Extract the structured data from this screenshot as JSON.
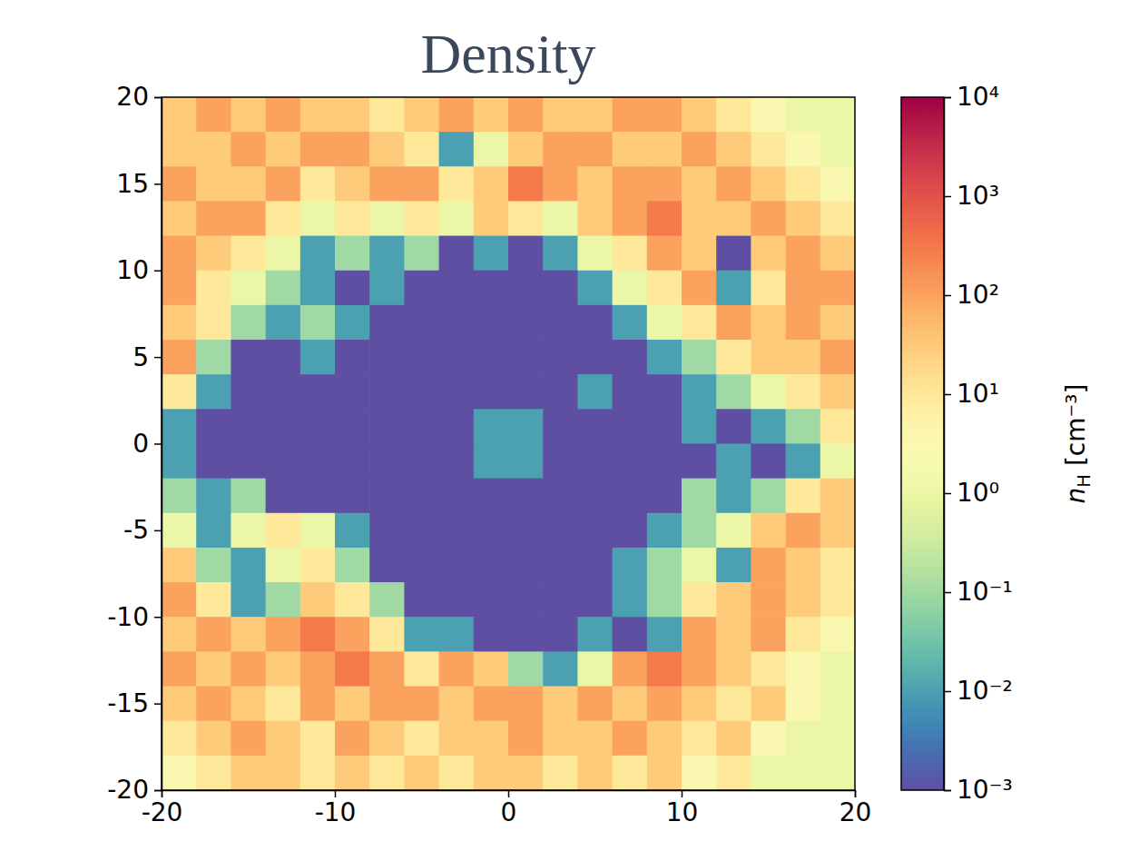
{
  "chart_data": {
    "type": "heatmap",
    "title": "Density",
    "xlim": [
      -20,
      20
    ],
    "ylim": [
      -20,
      20
    ],
    "xticks": [
      -20,
      -10,
      0,
      10,
      20
    ],
    "yticks": [
      -20,
      -15,
      -10,
      -5,
      0,
      5,
      10,
      15,
      20
    ],
    "x": [
      -19,
      -17,
      -15,
      -13,
      -11,
      -9,
      -7,
      -5,
      -3,
      -1,
      1,
      3,
      5,
      7,
      9,
      11,
      13,
      15,
      17,
      19
    ],
    "y": [
      19,
      17,
      15,
      13,
      11,
      9,
      7,
      5,
      3,
      1,
      -1,
      -3,
      -5,
      -7,
      -9,
      -11,
      -13,
      -15,
      -17,
      -19
    ],
    "cells": [
      [
        30,
        100,
        30,
        100,
        30,
        30,
        10,
        30,
        100,
        30,
        100,
        30,
        30,
        100,
        100,
        30,
        10,
        3,
        1,
        1
      ],
      [
        30,
        30,
        100,
        30,
        100,
        100,
        30,
        10,
        0.01,
        1,
        30,
        100,
        100,
        30,
        30,
        100,
        30,
        10,
        3,
        1
      ],
      [
        100,
        30,
        30,
        100,
        10,
        30,
        100,
        100,
        10,
        30,
        300,
        100,
        30,
        100,
        100,
        30,
        100,
        30,
        10,
        3
      ],
      [
        30,
        100,
        100,
        10,
        1,
        10,
        1,
        10,
        1,
        30,
        10,
        1,
        30,
        100,
        300,
        30,
        30,
        100,
        30,
        10
      ],
      [
        100,
        30,
        10,
        1,
        0.01,
        0.1,
        0.01,
        0.1,
        0.001,
        0.01,
        0.001,
        0.01,
        1,
        10,
        100,
        30,
        0.001,
        30,
        100,
        30
      ],
      [
        100,
        10,
        1,
        0.1,
        0.01,
        0.001,
        0.01,
        0.001,
        0.001,
        0.001,
        0.001,
        0.001,
        0.01,
        1,
        10,
        100,
        0.01,
        10,
        100,
        100
      ],
      [
        30,
        10,
        0.1,
        0.01,
        0.1,
        0.01,
        0.001,
        0.001,
        0.001,
        0.001,
        0.001,
        0.001,
        0.001,
        0.01,
        1,
        10,
        100,
        30,
        100,
        30
      ],
      [
        100,
        0.1,
        0.001,
        0.001,
        0.01,
        0.001,
        0.001,
        0.001,
        0.001,
        0.001,
        0.001,
        0.001,
        0.001,
        0.001,
        0.01,
        0.1,
        10,
        30,
        30,
        100
      ],
      [
        10,
        0.01,
        0.001,
        0.001,
        0.001,
        0.001,
        0.001,
        0.001,
        0.001,
        0.001,
        0.001,
        0.001,
        0.01,
        0.001,
        0.001,
        0.01,
        0.1,
        1,
        10,
        30
      ],
      [
        0.01,
        0.001,
        0.001,
        0.001,
        0.001,
        0.001,
        0.001,
        0.001,
        0.001,
        0.01,
        0.01,
        0.001,
        0.001,
        0.001,
        0.001,
        0.01,
        0.001,
        0.01,
        0.1,
        10
      ],
      [
        0.01,
        0.001,
        0.001,
        0.001,
        0.001,
        0.001,
        0.001,
        0.001,
        0.001,
        0.01,
        0.01,
        0.001,
        0.001,
        0.001,
        0.001,
        0.001,
        0.01,
        0.001,
        0.01,
        1
      ],
      [
        0.1,
        0.01,
        0.1,
        0.001,
        0.001,
        0.001,
        0.001,
        0.001,
        0.001,
        0.001,
        0.001,
        0.001,
        0.001,
        0.001,
        0.001,
        0.1,
        0.01,
        0.1,
        10,
        30
      ],
      [
        1,
        0.01,
        1,
        10,
        1,
        0.01,
        0.001,
        0.001,
        0.001,
        0.001,
        0.001,
        0.001,
        0.001,
        0.001,
        0.01,
        0.1,
        1,
        30,
        100,
        30
      ],
      [
        30,
        0.1,
        0.01,
        1,
        10,
        0.1,
        0.001,
        0.001,
        0.001,
        0.001,
        0.001,
        0.001,
        0.001,
        0.01,
        0.1,
        1,
        0.01,
        100,
        30,
        10
      ],
      [
        100,
        10,
        0.01,
        0.1,
        30,
        10,
        0.1,
        0.001,
        0.001,
        0.001,
        0.001,
        0.001,
        0.001,
        0.01,
        0.1,
        10,
        30,
        100,
        30,
        10
      ],
      [
        30,
        100,
        30,
        100,
        300,
        100,
        10,
        0.01,
        0.01,
        0.001,
        0.001,
        0.001,
        0.01,
        0.001,
        0.01,
        100,
        30,
        100,
        10,
        3
      ],
      [
        100,
        30,
        100,
        30,
        100,
        300,
        100,
        10,
        100,
        30,
        0.1,
        0.01,
        1,
        100,
        300,
        100,
        30,
        10,
        3,
        1
      ],
      [
        30,
        100,
        30,
        10,
        100,
        30,
        100,
        100,
        30,
        100,
        100,
        30,
        100,
        30,
        100,
        30,
        10,
        30,
        3,
        1
      ],
      [
        10,
        30,
        100,
        30,
        10,
        100,
        30,
        10,
        30,
        30,
        100,
        30,
        30,
        100,
        30,
        10,
        30,
        3,
        1,
        1
      ],
      [
        3,
        10,
        30,
        30,
        10,
        30,
        10,
        30,
        10,
        30,
        30,
        10,
        30,
        10,
        30,
        3,
        10,
        1,
        1,
        1
      ]
    ],
    "colorbar": {
      "label": "nH [cm⁻³]",
      "log": true,
      "lim": [
        0.001,
        10000
      ],
      "ticks": [
        {
          "value": 0.001,
          "label": "10⁻³"
        },
        {
          "value": 0.01,
          "label": "10⁻²"
        },
        {
          "value": 0.1,
          "label": "10⁻¹"
        },
        {
          "value": 1,
          "label": "10⁰"
        },
        {
          "value": 10,
          "label": "10¹"
        },
        {
          "value": 100,
          "label": "10²"
        },
        {
          "value": 1000,
          "label": "10³"
        },
        {
          "value": 10000,
          "label": "10⁴"
        }
      ]
    }
  }
}
